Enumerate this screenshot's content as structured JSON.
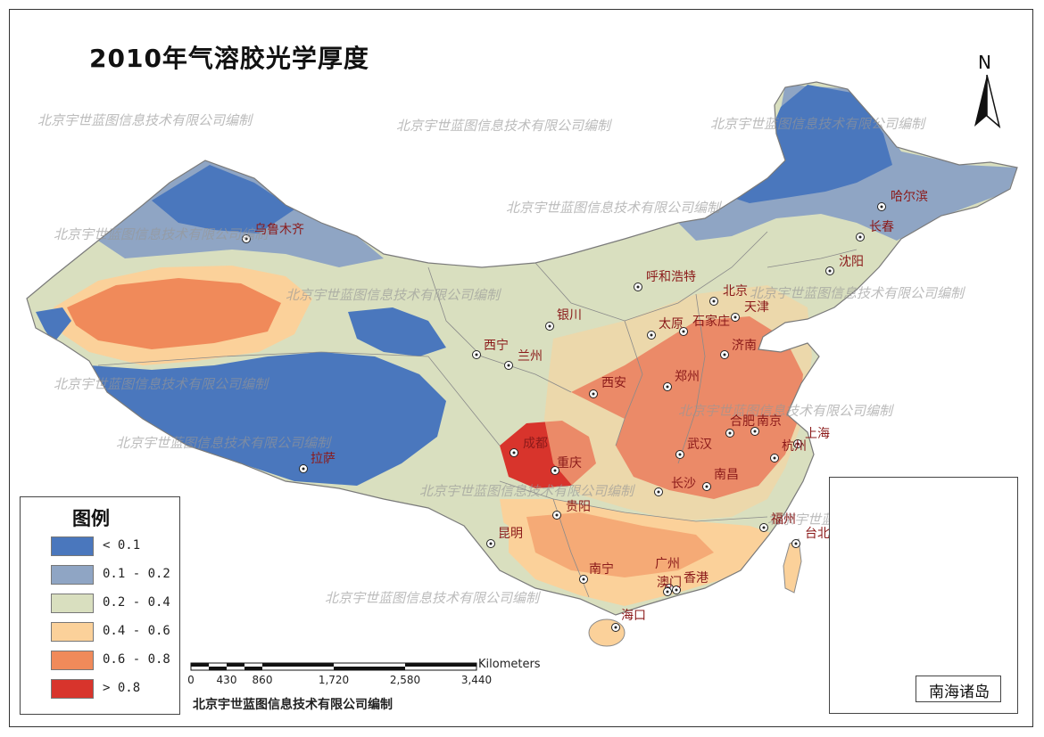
{
  "title": "2010年气溶胶光学厚度",
  "north_label": "N",
  "watermark": "北京宇世蓝图信息技术有限公司编制",
  "colors": {
    "c1": "#4a77bd",
    "c2": "#8fa5c4",
    "c3": "#d9dfbf",
    "c4": "#fbd19a",
    "c5": "#f08a5a",
    "c6": "#d8342c",
    "border": "#8a8a8a"
  },
  "legend": {
    "title": "图例",
    "items": [
      {
        "label": "< 0.1",
        "color": "#4a77bd"
      },
      {
        "label": "0.1 - 0.2",
        "color": "#8fa5c4"
      },
      {
        "label": "0.2 - 0.4",
        "color": "#d9dfbf"
      },
      {
        "label": "0.4 - 0.6",
        "color": "#fbd19a"
      },
      {
        "label": "0.6 - 0.8",
        "color": "#f08a5a"
      },
      {
        "label": "> 0.8",
        "color": "#d8342c"
      }
    ]
  },
  "scale_bar": {
    "unit": "Kilometers",
    "ticks": [
      "0",
      "430",
      "860",
      "1,720",
      "2,580",
      "3,440"
    ]
  },
  "credit": "北京宇世蓝图信息技术有限公司编制",
  "inset_label": "南海诸岛",
  "cities": [
    "乌鲁木齐",
    "哈尔滨",
    "长春",
    "沈阳",
    "呼和浩特",
    "北京",
    "天津",
    "银川",
    "太原",
    "石家庄",
    "济南",
    "西宁",
    "兰州",
    "西安",
    "郑州",
    "合肥",
    "南京",
    "上海",
    "杭州",
    "武汉",
    "成都",
    "重庆",
    "拉萨",
    "长沙",
    "南昌",
    "贵阳",
    "昆明",
    "福州",
    "台北",
    "南宁",
    "广州",
    "澳门",
    "香港",
    "海口"
  ]
}
